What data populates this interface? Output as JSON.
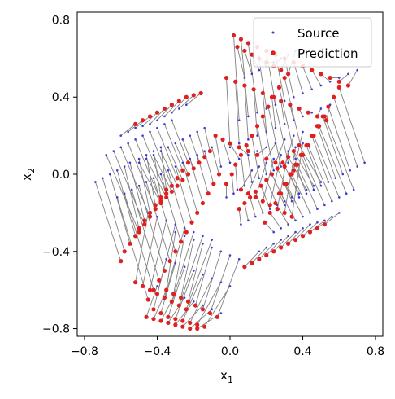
{
  "chart_data": {
    "type": "scatter",
    "title": "",
    "xlabel": "x",
    "xlabel_sub": "1",
    "ylabel": "x",
    "ylabel_sub": "2",
    "xlim": [
      -0.84,
      0.84
    ],
    "ylim": [
      -0.84,
      0.84
    ],
    "xticks": [
      -0.8,
      -0.4,
      0.0,
      0.4,
      0.8
    ],
    "xtick_labels": [
      "−0.8",
      "−0.4",
      "0.0",
      "0.4",
      "0.8"
    ],
    "yticks": [
      -0.8,
      -0.4,
      0.0,
      0.4,
      0.8
    ],
    "ytick_labels": [
      "−0.8",
      "−0.4",
      "0.0",
      "0.4",
      "0.8"
    ],
    "grid": false,
    "legend_position": "top-right",
    "legend": [
      {
        "label": "Source",
        "color": "#3a3ad6",
        "marker": "small-dot"
      },
      {
        "label": "Prediction",
        "color": "#e02020",
        "marker": "dot"
      }
    ],
    "colors": {
      "source": "#3a3ad6",
      "prediction": "#e02020",
      "connector": "#808080"
    },
    "series": [
      {
        "name": "Source",
        "x": [
          -0.74,
          -0.7,
          -0.66,
          -0.62,
          -0.58,
          -0.55,
          -0.5,
          -0.46,
          -0.42,
          -0.38,
          -0.68,
          -0.64,
          -0.6,
          -0.56,
          -0.52,
          -0.48,
          -0.44,
          -0.4,
          -0.36,
          -0.32,
          -0.6,
          -0.56,
          -0.52,
          -0.48,
          -0.44,
          -0.4,
          -0.36,
          -0.32,
          -0.28,
          -0.24,
          -0.5,
          -0.46,
          -0.42,
          -0.38,
          -0.34,
          -0.3,
          -0.26,
          -0.22,
          -0.18,
          -0.14,
          -0.62,
          -0.58,
          -0.54,
          -0.5,
          -0.46,
          -0.42,
          -0.38,
          -0.34,
          -0.3,
          -0.26,
          -0.22,
          -0.18,
          -0.14,
          -0.1,
          0.74,
          0.7,
          0.66,
          0.62,
          0.58,
          0.54,
          0.5,
          0.46,
          0.42,
          0.38,
          0.34,
          0.3,
          0.68,
          0.64,
          0.6,
          0.56,
          0.52,
          0.48,
          0.44,
          0.4,
          0.36,
          0.32,
          0.28,
          0.24,
          0.6,
          0.56,
          0.52,
          0.48,
          0.44,
          0.4,
          0.36,
          0.32,
          0.28,
          0.24,
          0.2,
          0.16,
          0.5,
          0.46,
          0.42,
          0.38,
          0.34,
          0.3,
          0.26,
          0.22,
          0.18,
          0.14,
          0.1,
          0.06,
          0.4,
          0.36,
          0.32,
          0.28,
          0.24,
          0.2,
          0.16,
          0.12,
          0.08,
          0.04,
          0.02,
          -0.02,
          0.05,
          0.1,
          0.15,
          0.2,
          0.25,
          0.3,
          0.35,
          0.4,
          0.45,
          0.5,
          0.55,
          0.6,
          0.65,
          0.7,
          0.0,
          0.05,
          0.1,
          0.15,
          0.2,
          0.25,
          0.3,
          0.35,
          0.4,
          0.45,
          0.5,
          0.55,
          -0.05,
          0.0,
          0.05,
          0.1,
          0.15,
          0.2,
          0.25,
          0.3,
          0.35,
          0.4,
          -0.3,
          -0.25,
          -0.2,
          -0.15,
          -0.1,
          -0.05,
          0.0,
          0.05,
          -0.35,
          -0.3,
          -0.25,
          -0.2,
          -0.15,
          -0.1,
          -0.05,
          0.0,
          -0.4,
          -0.35,
          -0.3,
          -0.25,
          -0.2,
          -0.15,
          -0.1,
          -0.05,
          -0.45,
          -0.4,
          -0.35,
          -0.3,
          -0.25,
          -0.2,
          -0.15,
          -0.1,
          0.08,
          0.12,
          0.16,
          0.2,
          0.24,
          0.28,
          0.32,
          0.36,
          0.12,
          0.16,
          0.2,
          0.24,
          0.28,
          0.32,
          0.36,
          0.4
        ],
        "y": [
          -0.04,
          -0.02,
          0.0,
          0.02,
          0.04,
          0.06,
          0.08,
          0.1,
          0.12,
          0.14,
          0.1,
          0.12,
          0.14,
          0.16,
          0.18,
          0.2,
          0.22,
          0.24,
          0.26,
          0.28,
          0.2,
          0.22,
          0.24,
          0.25,
          0.26,
          0.28,
          0.3,
          0.32,
          0.34,
          0.36,
          0.06,
          0.08,
          0.1,
          0.12,
          0.14,
          0.16,
          0.18,
          0.2,
          0.22,
          0.24,
          -0.12,
          -0.1,
          -0.08,
          -0.06,
          -0.04,
          -0.02,
          0.0,
          0.02,
          0.04,
          0.06,
          0.08,
          0.1,
          0.12,
          0.14,
          0.06,
          0.04,
          0.02,
          0.0,
          -0.02,
          -0.04,
          -0.06,
          -0.08,
          -0.1,
          -0.12,
          -0.14,
          -0.16,
          -0.08,
          -0.1,
          -0.12,
          -0.14,
          -0.16,
          -0.18,
          -0.2,
          -0.22,
          -0.24,
          -0.26,
          -0.28,
          -0.3,
          -0.2,
          -0.22,
          -0.24,
          -0.25,
          -0.26,
          -0.28,
          -0.3,
          -0.32,
          -0.34,
          -0.36,
          -0.38,
          -0.4,
          -0.04,
          -0.06,
          -0.08,
          -0.1,
          -0.12,
          -0.14,
          -0.16,
          -0.18,
          -0.2,
          -0.22,
          -0.24,
          -0.26,
          0.1,
          0.08,
          0.06,
          0.04,
          0.02,
          0.0,
          -0.02,
          -0.04,
          -0.06,
          -0.08,
          -0.1,
          -0.12,
          0.28,
          0.3,
          0.32,
          0.34,
          0.36,
          0.38,
          0.4,
          0.42,
          0.44,
          0.46,
          0.48,
          0.5,
          0.52,
          0.54,
          0.14,
          0.16,
          0.18,
          0.2,
          0.22,
          0.24,
          0.26,
          0.28,
          0.3,
          0.32,
          0.34,
          0.36,
          0.04,
          0.06,
          0.08,
          0.1,
          0.12,
          0.14,
          0.16,
          0.18,
          0.2,
          0.22,
          -0.3,
          -0.32,
          -0.34,
          -0.36,
          -0.38,
          -0.4,
          -0.42,
          -0.44,
          -0.44,
          -0.46,
          -0.48,
          -0.5,
          -0.52,
          -0.54,
          -0.56,
          -0.58,
          -0.58,
          -0.6,
          -0.62,
          -0.64,
          -0.66,
          -0.68,
          -0.7,
          -0.72,
          -0.2,
          -0.22,
          -0.24,
          -0.26,
          -0.28,
          -0.3,
          -0.32,
          -0.34,
          0.5,
          0.52,
          0.54,
          0.56,
          0.58,
          0.6,
          0.62,
          0.64,
          0.02,
          0.04,
          0.06,
          0.08,
          0.1,
          0.12,
          0.14,
          0.16
        ]
      },
      {
        "name": "Prediction",
        "x": [
          -0.6,
          -0.58,
          -0.55,
          -0.52,
          -0.5,
          -0.47,
          -0.44,
          -0.41,
          -0.38,
          -0.35,
          -0.5,
          -0.47,
          -0.44,
          -0.41,
          -0.38,
          -0.35,
          -0.32,
          -0.29,
          -0.26,
          -0.23,
          -0.52,
          -0.48,
          -0.44,
          -0.4,
          -0.36,
          -0.32,
          -0.28,
          -0.24,
          -0.2,
          -0.16,
          -0.38,
          -0.35,
          -0.32,
          -0.29,
          -0.26,
          -0.23,
          -0.2,
          -0.17,
          -0.14,
          -0.11,
          -0.45,
          -0.42,
          -0.39,
          -0.36,
          -0.33,
          -0.3,
          -0.27,
          -0.24,
          -0.21,
          -0.18,
          -0.15,
          -0.12,
          -0.09,
          -0.06,
          0.6,
          0.57,
          0.54,
          0.51,
          0.48,
          0.45,
          0.42,
          0.39,
          0.36,
          0.33,
          0.3,
          0.27,
          0.52,
          0.49,
          0.46,
          0.43,
          0.4,
          0.37,
          0.34,
          0.31,
          0.28,
          0.25,
          0.22,
          0.19,
          0.52,
          0.48,
          0.44,
          0.4,
          0.36,
          0.32,
          0.28,
          0.24,
          0.2,
          0.16,
          0.12,
          0.08,
          0.38,
          0.35,
          0.32,
          0.29,
          0.26,
          0.23,
          0.2,
          0.17,
          0.14,
          0.11,
          0.08,
          0.05,
          0.3,
          0.27,
          0.24,
          0.21,
          0.18,
          0.15,
          0.12,
          0.09,
          0.06,
          0.03,
          0.01,
          -0.02,
          0.02,
          0.06,
          0.1,
          0.15,
          0.2,
          0.25,
          0.3,
          0.35,
          0.4,
          0.45,
          0.5,
          0.55,
          0.6,
          0.65,
          -0.02,
          0.03,
          0.08,
          0.13,
          0.18,
          0.23,
          0.28,
          0.33,
          0.38,
          0.43,
          0.48,
          0.53,
          -0.08,
          -0.04,
          0.0,
          0.05,
          0.1,
          0.15,
          0.2,
          0.25,
          0.3,
          0.35,
          -0.35,
          -0.31,
          -0.27,
          -0.23,
          -0.19,
          -0.15,
          -0.11,
          -0.07,
          -0.42,
          -0.38,
          -0.34,
          -0.3,
          -0.26,
          -0.22,
          -0.18,
          -0.14,
          -0.46,
          -0.42,
          -0.38,
          -0.34,
          -0.3,
          -0.26,
          -0.22,
          -0.18,
          -0.52,
          -0.48,
          -0.44,
          -0.4,
          -0.36,
          -0.32,
          -0.28,
          -0.24,
          0.04,
          0.08,
          0.12,
          0.16,
          0.2,
          0.24,
          0.28,
          0.32,
          0.06,
          0.1,
          0.14,
          0.18,
          0.22,
          0.26,
          0.3,
          0.34
        ],
        "y": [
          -0.45,
          -0.4,
          -0.36,
          -0.32,
          -0.28,
          -0.24,
          -0.2,
          -0.16,
          -0.12,
          -0.08,
          -0.3,
          -0.26,
          -0.22,
          -0.18,
          -0.14,
          -0.1,
          -0.06,
          -0.02,
          0.02,
          0.06,
          0.26,
          0.28,
          0.3,
          0.32,
          0.34,
          0.36,
          0.38,
          0.4,
          0.41,
          0.42,
          -0.15,
          -0.12,
          -0.09,
          -0.06,
          -0.03,
          0.0,
          0.03,
          0.06,
          0.09,
          0.12,
          -0.65,
          -0.6,
          -0.55,
          -0.5,
          -0.45,
          -0.4,
          -0.35,
          -0.3,
          -0.25,
          -0.2,
          -0.15,
          -0.1,
          -0.05,
          0.0,
          0.45,
          0.4,
          0.35,
          0.3,
          0.25,
          0.2,
          0.15,
          0.1,
          0.05,
          0.0,
          -0.05,
          -0.1,
          0.3,
          0.25,
          0.2,
          0.15,
          0.1,
          0.05,
          0.0,
          -0.05,
          -0.1,
          -0.15,
          -0.2,
          -0.25,
          -0.26,
          -0.28,
          -0.3,
          -0.32,
          -0.34,
          -0.36,
          -0.38,
          -0.4,
          -0.42,
          -0.44,
          -0.46,
          -0.48,
          0.15,
          0.12,
          0.09,
          0.06,
          0.03,
          0.0,
          -0.03,
          -0.06,
          -0.09,
          -0.12,
          -0.15,
          -0.18,
          0.5,
          0.45,
          0.4,
          0.35,
          0.3,
          0.25,
          0.2,
          0.15,
          0.1,
          0.05,
          0.0,
          -0.05,
          0.72,
          0.7,
          0.68,
          0.66,
          0.64,
          0.62,
          0.6,
          0.58,
          0.56,
          0.54,
          0.52,
          0.5,
          0.48,
          0.46,
          0.5,
          0.48,
          0.46,
          0.44,
          0.42,
          0.4,
          0.38,
          0.36,
          0.34,
          0.32,
          0.3,
          0.28,
          0.2,
          0.18,
          0.16,
          0.14,
          0.12,
          0.1,
          0.08,
          0.06,
          0.04,
          0.02,
          -0.6,
          -0.62,
          -0.64,
          -0.66,
          -0.68,
          -0.7,
          -0.72,
          -0.74,
          -0.7,
          -0.72,
          -0.74,
          -0.75,
          -0.76,
          -0.77,
          -0.78,
          -0.79,
          -0.74,
          -0.75,
          -0.76,
          -0.77,
          -0.78,
          -0.79,
          -0.8,
          -0.8,
          -0.56,
          -0.58,
          -0.6,
          -0.62,
          -0.64,
          -0.66,
          -0.68,
          -0.7,
          0.66,
          0.64,
          0.62,
          0.6,
          0.58,
          0.56,
          0.54,
          0.52,
          -0.08,
          -0.1,
          -0.12,
          -0.14,
          -0.16,
          -0.18,
          -0.2,
          -0.22
        ]
      }
    ]
  }
}
